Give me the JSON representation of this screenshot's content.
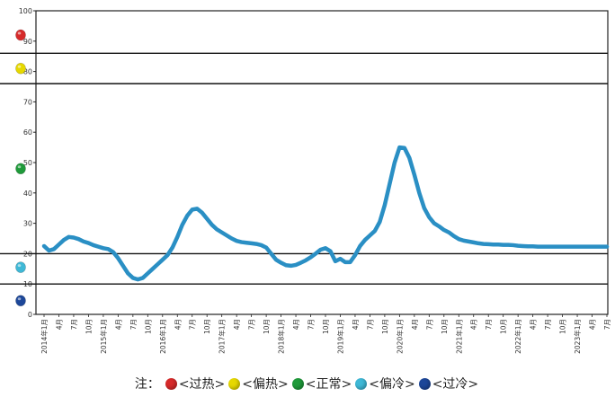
{
  "chart_data": {
    "type": "line",
    "title": "",
    "xlabel": "",
    "ylabel": "",
    "ylim": [
      0,
      100
    ],
    "yticks": [
      "0",
      "10",
      "20",
      "30",
      "40",
      "50",
      "60",
      "70",
      "80",
      "90",
      "100"
    ],
    "threshold_lines": [
      10,
      20,
      76,
      86
    ],
    "grid": false,
    "xticks": [
      "2014年1月",
      "4月",
      "7月",
      "10月",
      "2015年1月",
      "4月",
      "7月",
      "10月",
      "2016年1月",
      "4月",
      "7月",
      "10月",
      "2017年1月",
      "4月",
      "7月",
      "10月",
      "2018年1月",
      "4月",
      "7月",
      "10月",
      "2019年1月",
      "4月",
      "7月",
      "10月",
      "2020年1月",
      "4月",
      "7月",
      "10月",
      "2021年1月",
      "4月",
      "7月",
      "10月",
      "2022年1月",
      "4月",
      "7月",
      "10月",
      "2023年1月",
      "4月",
      "7月"
    ],
    "series": [
      {
        "color": "#2a8fc4",
        "x": [
          "2014-01",
          "2014-02",
          "2014-03",
          "2014-04",
          "2014-05",
          "2014-06",
          "2014-07",
          "2014-08",
          "2014-09",
          "2014-10",
          "2014-11",
          "2014-12",
          "2015-01",
          "2015-02",
          "2015-03",
          "2015-04",
          "2015-05",
          "2015-06",
          "2015-07",
          "2015-08",
          "2015-09",
          "2015-10",
          "2015-11",
          "2015-12",
          "2016-01",
          "2016-02",
          "2016-03",
          "2016-04",
          "2016-05",
          "2016-06",
          "2016-07",
          "2016-08",
          "2016-09",
          "2016-10",
          "2016-11",
          "2016-12",
          "2017-01",
          "2017-02",
          "2017-03",
          "2017-04",
          "2017-05",
          "2017-06",
          "2017-07",
          "2017-08",
          "2017-09",
          "2017-10",
          "2017-11",
          "2017-12",
          "2018-01",
          "2018-02",
          "2018-03",
          "2018-04",
          "2018-05",
          "2018-06",
          "2018-07",
          "2018-08",
          "2018-09",
          "2018-10",
          "2018-11",
          "2018-12",
          "2019-01",
          "2019-02",
          "2019-03",
          "2019-04",
          "2019-05",
          "2019-06",
          "2019-07",
          "2019-08",
          "2019-09",
          "2019-10",
          "2019-11",
          "2019-12",
          "2020-01",
          "2020-02",
          "2020-03",
          "2020-04",
          "2020-05",
          "2020-06",
          "2020-07",
          "2020-08",
          "2020-09",
          "2020-10",
          "2020-11",
          "2020-12",
          "2021-01",
          "2021-02",
          "2021-03",
          "2021-04",
          "2021-05",
          "2021-06",
          "2021-07",
          "2021-08",
          "2021-09",
          "2021-10",
          "2021-11",
          "2021-12",
          "2022-01",
          "2022-02",
          "2022-03",
          "2022-04",
          "2022-05",
          "2022-06",
          "2022-07",
          "2022-08",
          "2022-09",
          "2022-10",
          "2022-11",
          "2022-12",
          "2023-01",
          "2023-02",
          "2023-03",
          "2023-04",
          "2023-05",
          "2023-06",
          "2023-07"
        ],
        "values": [
          22.5,
          21,
          21.5,
          23,
          24.5,
          25.5,
          25.3,
          24.8,
          24,
          23.5,
          22.8,
          22.3,
          21.8,
          21.5,
          20.5,
          18.5,
          16,
          13.5,
          12,
          11.5,
          12,
          13.5,
          15,
          16.5,
          18,
          19.5,
          22,
          25.5,
          29.5,
          32.5,
          34.5,
          34.8,
          33.5,
          31.5,
          29.5,
          28,
          27,
          26,
          25,
          24.2,
          23.8,
          23.6,
          23.4,
          23.2,
          22.8,
          22,
          20,
          18,
          17,
          16.2,
          16,
          16.3,
          17,
          17.8,
          18.8,
          20,
          21.3,
          21.8,
          20.8,
          17.5,
          18.3,
          17.2,
          17.2,
          19.5,
          22.5,
          24.5,
          26,
          27.5,
          30.5,
          36,
          43,
          50,
          55,
          54.8,
          51.5,
          46,
          40,
          35,
          32,
          30,
          29,
          27.8,
          27,
          25.8,
          24.8,
          24.3,
          24,
          23.7,
          23.4,
          23.2,
          23.1,
          23,
          23,
          22.9,
          22.9,
          22.8,
          22.6,
          22.5,
          22.4,
          22.4,
          22.3,
          22.3,
          22.3,
          22.3,
          22.3,
          22.3,
          22.3,
          22.3,
          22.3,
          22.3,
          22.3,
          22.3,
          22.3,
          22.3,
          22.3
        ]
      }
    ],
    "legend_placement": "bottom"
  },
  "category_markers": [
    {
      "color": "#d62a2a",
      "level": 92
    },
    {
      "color": "#e6d800",
      "level": 81
    },
    {
      "color": "#1f9a3a",
      "level": 48
    },
    {
      "color": "#3fb8d6",
      "level": 15.5
    },
    {
      "color": "#1d4799",
      "level": 4.5
    }
  ],
  "legend": {
    "prefix": "注：",
    "items": [
      {
        "label": "<过热>",
        "color": "#d62a2a"
      },
      {
        "label": "<偏热>",
        "color": "#e6d800"
      },
      {
        "label": "<正常>",
        "color": "#1f9a3a"
      },
      {
        "label": "<偏冷>",
        "color": "#3fb8d6"
      },
      {
        "label": "<过冷>",
        "color": "#1d4799"
      }
    ]
  }
}
